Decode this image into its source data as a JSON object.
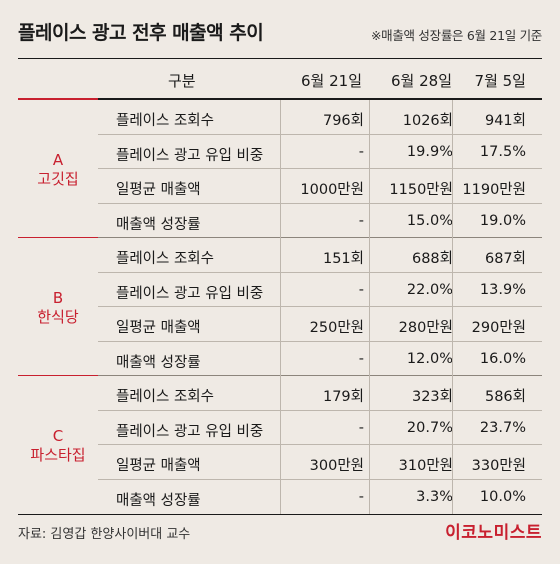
{
  "title": "플레이스 광고 전후 매출액 추이",
  "note": "※매출액 성장률은 6월 21일 기준",
  "headers": [
    "구분",
    "6월 21일",
    "6월 28일",
    "7월 5일"
  ],
  "groups": [
    {
      "code": "A",
      "name": "고깃집",
      "rows": [
        {
          "metric": "플레이스 조회수",
          "values": [
            "796회",
            "1026회",
            "941회"
          ]
        },
        {
          "metric": "플레이스 광고 유입 비중",
          "values": [
            "-",
            "19.9%",
            "17.5%"
          ]
        },
        {
          "metric": "일평균 매출액",
          "values": [
            "1000만원",
            "1150만원",
            "1190만원"
          ]
        },
        {
          "metric": "매출액 성장률",
          "values": [
            "-",
            "15.0%",
            "19.0%"
          ]
        }
      ]
    },
    {
      "code": "B",
      "name": "한식당",
      "rows": [
        {
          "metric": "플레이스 조회수",
          "values": [
            "151회",
            "688회",
            "687회"
          ]
        },
        {
          "metric": "플레이스 광고 유입 비중",
          "values": [
            "-",
            "22.0%",
            "13.9%"
          ]
        },
        {
          "metric": "일평균 매출액",
          "values": [
            "250만원",
            "280만원",
            "290만원"
          ]
        },
        {
          "metric": "매출액 성장률",
          "values": [
            "-",
            "12.0%",
            "16.0%"
          ]
        }
      ]
    },
    {
      "code": "C",
      "name": "파스타집",
      "rows": [
        {
          "metric": "플레이스 조회수",
          "values": [
            "179회",
            "323회",
            "586회"
          ]
        },
        {
          "metric": "플레이스 광고 유입 비중",
          "values": [
            "-",
            "20.7%",
            "23.7%"
          ]
        },
        {
          "metric": "일평균 매출액",
          "values": [
            "300만원",
            "310만원",
            "330만원"
          ]
        },
        {
          "metric": "매출액 성장률",
          "values": [
            "-",
            "3.3%",
            "10.0%"
          ]
        }
      ]
    }
  ],
  "source": "자료: 김영갑 한양사이버대 교수",
  "brand": "이코노미스트",
  "colors": {
    "accent": "#c8202f",
    "background": "#efeae4"
  }
}
